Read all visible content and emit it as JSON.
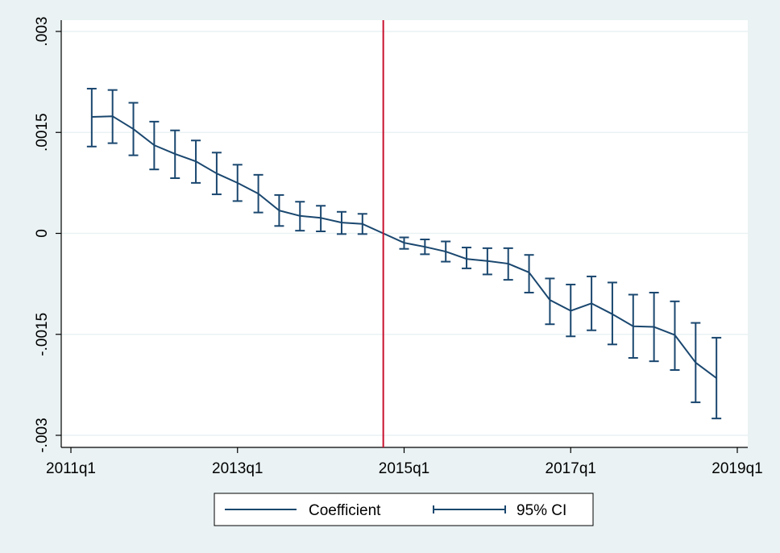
{
  "chart_data": {
    "type": "line",
    "x_tick_labels": [
      "2011q1",
      "2013q1",
      "2015q1",
      "2017q1",
      "2019q1"
    ],
    "x_ticks": [
      2011.0,
      2013.0,
      2015.0,
      2017.0,
      2019.0
    ],
    "xlim": [
      2011.0,
      2019.0
    ],
    "y_tick_labels": [
      "-.003",
      "-.0015",
      "0",
      ".0015",
      ".003"
    ],
    "y_ticks": [
      -0.003,
      -0.0015,
      0,
      0.0015,
      0.003
    ],
    "ylim": [
      -0.003,
      0.003
    ],
    "grid": true,
    "vertical_line": {
      "x": 2014.75,
      "color": "#c8102e"
    },
    "colors": {
      "series": "#1a476f",
      "background": "#eaf2f3",
      "plot_background": "#ffffff",
      "gridline": "#eaf2f3"
    },
    "series": [
      {
        "name": "Coefficient",
        "x": [
          2011.25,
          2011.5,
          2011.75,
          2012.0,
          2012.25,
          2012.5,
          2012.75,
          2013.0,
          2013.25,
          2013.5,
          2013.75,
          2014.0,
          2014.25,
          2014.5,
          2014.75,
          2015.0,
          2015.25,
          2015.5,
          2015.75,
          2016.0,
          2016.25,
          2016.5,
          2016.75,
          2017.0,
          2017.25,
          2017.5,
          2017.75,
          2018.0,
          2018.25,
          2018.5,
          2018.75
        ],
        "y": [
          0.00173,
          0.00174,
          0.00155,
          0.00131,
          0.00118,
          0.00107,
          0.00089,
          0.00075,
          0.00059,
          0.00034,
          0.00026,
          0.00023,
          0.00016,
          0.00014,
          0.0,
          -0.00014,
          -0.0002,
          -0.00027,
          -0.00038,
          -0.00041,
          -0.00045,
          -0.00058,
          -0.00099,
          -0.00115,
          -0.00104,
          -0.0012,
          -0.00138,
          -0.00139,
          -0.00151,
          -0.00192,
          -0.00215
        ]
      },
      {
        "name": "95% CI",
        "lower": [
          0.00129,
          0.00134,
          0.00116,
          0.00095,
          0.00082,
          0.00075,
          0.00058,
          0.00048,
          0.00031,
          0.00011,
          4e-05,
          3e-05,
          -1e-05,
          -1e-05,
          0.0,
          -0.00023,
          -0.00031,
          -0.00042,
          -0.00052,
          -0.00061,
          -0.00069,
          -0.00088,
          -0.00135,
          -0.00153,
          -0.00144,
          -0.00165,
          -0.00185,
          -0.0019,
          -0.00203,
          -0.00251,
          -0.00275
        ],
        "upper": [
          0.00215,
          0.00213,
          0.00194,
          0.00166,
          0.00153,
          0.00138,
          0.0012,
          0.00102,
          0.00087,
          0.00057,
          0.00047,
          0.00041,
          0.00032,
          0.00029,
          0.0,
          -6e-05,
          -9e-05,
          -0.00012,
          -0.00021,
          -0.00022,
          -0.00022,
          -0.00032,
          -0.00067,
          -0.00076,
          -0.00064,
          -0.00073,
          -0.00091,
          -0.00088,
          -0.00101,
          -0.00133,
          -0.00155
        ]
      }
    ],
    "legend": {
      "entries": [
        "Coefficient",
        "95% CI"
      ],
      "placement": "bottom"
    }
  }
}
